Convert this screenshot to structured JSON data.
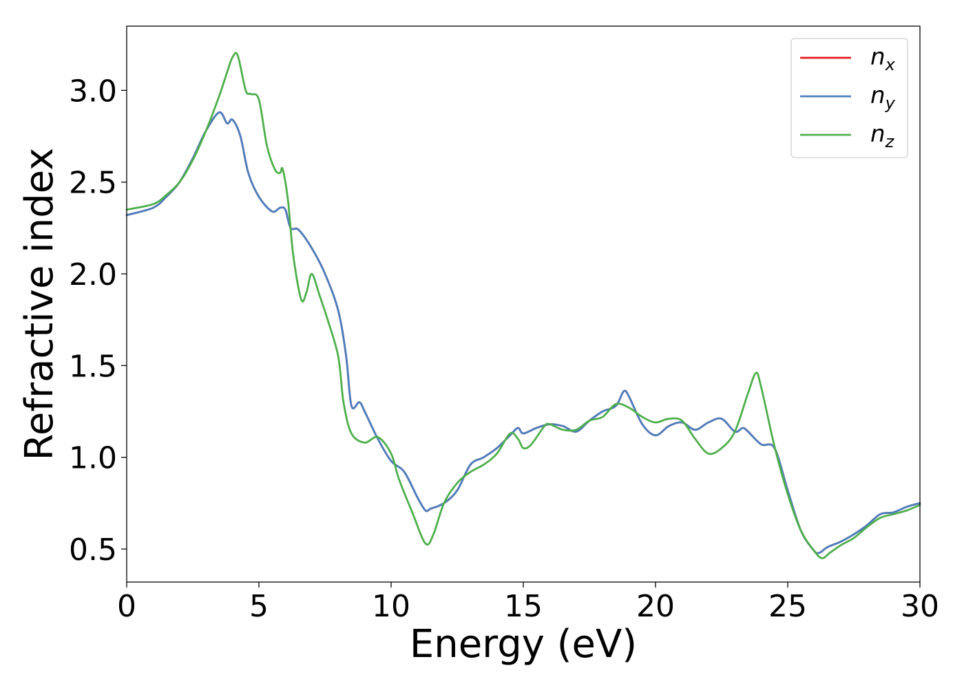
{
  "chart_data": {
    "type": "line",
    "xlabel": "Energy (eV)",
    "ylabel": "Refractive index",
    "xlim": [
      0,
      30
    ],
    "ylim": [
      0.32,
      3.35
    ],
    "xticks": [
      0,
      5,
      10,
      15,
      20,
      25,
      30
    ],
    "xtick_labels": [
      "0",
      "5",
      "10",
      "15",
      "20",
      "25",
      "30"
    ],
    "yticks": [
      0.5,
      1.0,
      1.5,
      2.0,
      2.5,
      3.0
    ],
    "ytick_labels": [
      "0.5",
      "1.0",
      "1.5",
      "2.0",
      "2.5",
      "3.0"
    ],
    "grid": false,
    "legend_position": "top-right",
    "series": [
      {
        "name": "n",
        "subscript": "x",
        "color": "#e41a1c",
        "x": [
          0,
          1,
          1.5,
          2,
          2.5,
          3,
          3.5,
          3.8,
          4,
          4.3,
          4.6,
          5,
          5.5,
          5.8,
          6,
          6.2,
          6.5,
          7,
          7.5,
          8,
          8.3,
          8.5,
          8.8,
          9,
          9.5,
          10,
          10.5,
          11,
          11.3,
          11.5,
          12,
          12.5,
          13,
          13.5,
          14,
          14.5,
          14.8,
          15,
          15.5,
          16,
          16.5,
          17,
          17.5,
          18,
          18.5,
          18.8,
          19,
          19.5,
          20,
          20.5,
          21,
          21.5,
          22,
          22.5,
          23,
          23.3,
          23.5,
          24,
          24.5,
          25,
          25.5,
          26,
          26.2,
          26.5,
          27,
          27.5,
          28,
          28.5,
          29,
          29.5,
          30
        ],
        "y": [
          2.32,
          2.36,
          2.42,
          2.5,
          2.63,
          2.78,
          2.88,
          2.82,
          2.84,
          2.75,
          2.55,
          2.42,
          2.34,
          2.36,
          2.35,
          2.25,
          2.24,
          2.14,
          2.0,
          1.8,
          1.55,
          1.28,
          1.3,
          1.25,
          1.1,
          0.98,
          0.92,
          0.78,
          0.71,
          0.72,
          0.75,
          0.82,
          0.96,
          1.0,
          1.05,
          1.12,
          1.16,
          1.13,
          1.16,
          1.18,
          1.17,
          1.14,
          1.2,
          1.25,
          1.28,
          1.36,
          1.33,
          1.18,
          1.12,
          1.17,
          1.19,
          1.15,
          1.19,
          1.21,
          1.14,
          1.16,
          1.14,
          1.07,
          1.05,
          0.82,
          0.6,
          0.49,
          0.48,
          0.51,
          0.54,
          0.58,
          0.63,
          0.69,
          0.7,
          0.73,
          0.75
        ]
      },
      {
        "name": "n",
        "subscript": "y",
        "color": "#4a7fbf",
        "x": [
          0,
          1,
          1.5,
          2,
          2.5,
          3,
          3.5,
          3.8,
          4,
          4.3,
          4.6,
          5,
          5.5,
          5.8,
          6,
          6.2,
          6.5,
          7,
          7.5,
          8,
          8.3,
          8.5,
          8.8,
          9,
          9.5,
          10,
          10.5,
          11,
          11.3,
          11.5,
          12,
          12.5,
          13,
          13.5,
          14,
          14.5,
          14.8,
          15,
          15.5,
          16,
          16.5,
          17,
          17.5,
          18,
          18.5,
          18.8,
          19,
          19.5,
          20,
          20.5,
          21,
          21.5,
          22,
          22.5,
          23,
          23.3,
          23.5,
          24,
          24.5,
          25,
          25.5,
          26,
          26.2,
          26.5,
          27,
          27.5,
          28,
          28.5,
          29,
          29.5,
          30
        ],
        "y": [
          2.32,
          2.36,
          2.42,
          2.5,
          2.63,
          2.78,
          2.88,
          2.82,
          2.84,
          2.75,
          2.55,
          2.42,
          2.34,
          2.36,
          2.35,
          2.25,
          2.24,
          2.14,
          2.0,
          1.8,
          1.55,
          1.28,
          1.3,
          1.25,
          1.1,
          0.98,
          0.92,
          0.78,
          0.71,
          0.72,
          0.75,
          0.82,
          0.96,
          1.0,
          1.05,
          1.12,
          1.16,
          1.13,
          1.16,
          1.18,
          1.17,
          1.14,
          1.2,
          1.25,
          1.28,
          1.36,
          1.33,
          1.18,
          1.12,
          1.17,
          1.19,
          1.15,
          1.19,
          1.21,
          1.14,
          1.16,
          1.14,
          1.07,
          1.05,
          0.82,
          0.6,
          0.49,
          0.48,
          0.51,
          0.54,
          0.58,
          0.63,
          0.69,
          0.7,
          0.73,
          0.75
        ]
      },
      {
        "name": "n",
        "subscript": "z",
        "color": "#4daf4a",
        "x": [
          0,
          1,
          1.5,
          2,
          2.5,
          3,
          3.5,
          3.8,
          4,
          4.2,
          4.5,
          4.7,
          5,
          5.3,
          5.6,
          5.8,
          5.9,
          6.1,
          6.3,
          6.6,
          6.8,
          7,
          7.3,
          7.6,
          8,
          8.2,
          8.5,
          9,
          9.5,
          10,
          10.3,
          10.8,
          11.3,
          11.6,
          12,
          12.5,
          13,
          13.5,
          14,
          14.5,
          14.8,
          15,
          15.3,
          15.8,
          16,
          16.5,
          17,
          17.5,
          18,
          18.5,
          19,
          19.5,
          20,
          20.5,
          21,
          21.5,
          22,
          22.5,
          23,
          23.5,
          23.8,
          24,
          24.5,
          25,
          25.5,
          26,
          26.3,
          26.6,
          27,
          27.5,
          28,
          28.5,
          29,
          29.5,
          30
        ],
        "y": [
          2.35,
          2.38,
          2.43,
          2.5,
          2.62,
          2.78,
          2.97,
          3.1,
          3.18,
          3.19,
          3.0,
          2.98,
          2.95,
          2.7,
          2.57,
          2.55,
          2.57,
          2.4,
          2.1,
          1.86,
          1.9,
          2.0,
          1.88,
          1.75,
          1.55,
          1.3,
          1.13,
          1.08,
          1.11,
          1.02,
          0.88,
          0.7,
          0.53,
          0.58,
          0.75,
          0.86,
          0.92,
          0.96,
          1.02,
          1.13,
          1.1,
          1.05,
          1.07,
          1.17,
          1.18,
          1.15,
          1.15,
          1.2,
          1.22,
          1.29,
          1.27,
          1.22,
          1.19,
          1.21,
          1.2,
          1.1,
          1.02,
          1.05,
          1.14,
          1.35,
          1.46,
          1.38,
          1.06,
          0.8,
          0.6,
          0.49,
          0.45,
          0.48,
          0.52,
          0.56,
          0.62,
          0.67,
          0.69,
          0.71,
          0.74
        ]
      }
    ]
  }
}
